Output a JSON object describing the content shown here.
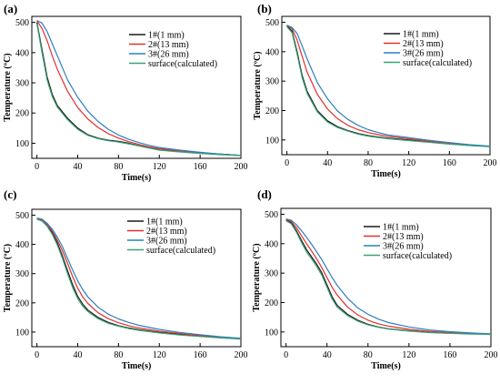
{
  "chart_data": [
    {
      "type": "line",
      "panel": "(a)",
      "xlabel": "Time(s)",
      "ylabel": "Temperature (ºC)",
      "xlim": [
        -5,
        200
      ],
      "ylim": [
        50,
        520
      ],
      "xticks": [
        0,
        40,
        80,
        120,
        160,
        200
      ],
      "yticks": [
        100,
        200,
        300,
        400,
        500
      ],
      "legend_position": "top-right",
      "series": [
        {
          "name": "1#(1 mm)",
          "color": "#1a1a1a",
          "x": [
            0,
            5,
            10,
            15,
            20,
            30,
            40,
            50,
            60,
            70,
            80,
            90,
            100,
            110,
            120,
            140,
            160,
            180,
            200
          ],
          "y": [
            500,
            410,
            320,
            262,
            225,
            183,
            150,
            128,
            117,
            110,
            106,
            100,
            92,
            85,
            78,
            72,
            68,
            64,
            60
          ]
        },
        {
          "name": "2#(13 mm)",
          "color": "#e0302e",
          "x": [
            0,
            5,
            10,
            15,
            20,
            30,
            40,
            50,
            60,
            70,
            80,
            90,
            100,
            110,
            120,
            140,
            160,
            180,
            200
          ],
          "y": [
            505,
            480,
            440,
            390,
            345,
            272,
            218,
            180,
            152,
            132,
            117,
            105,
            96,
            88,
            82,
            74,
            68,
            63,
            59
          ]
        },
        {
          "name": "3#(26 mm)",
          "color": "#2d7fc0",
          "x": [
            0,
            5,
            10,
            15,
            20,
            30,
            40,
            50,
            60,
            70,
            80,
            90,
            100,
            110,
            120,
            140,
            160,
            180,
            200
          ],
          "y": [
            506,
            498,
            470,
            430,
            390,
            310,
            252,
            206,
            172,
            146,
            127,
            113,
            102,
            93,
            86,
            77,
            70,
            64,
            60
          ]
        },
        {
          "name": "surface(calculated)",
          "color": "#3aa374",
          "x": [
            0,
            5,
            10,
            15,
            20,
            30,
            40,
            50,
            60,
            70,
            80,
            90,
            100,
            110,
            120,
            140,
            160,
            180,
            200
          ],
          "y": [
            495,
            400,
            310,
            255,
            220,
            178,
            146,
            126,
            115,
            108,
            104,
            98,
            91,
            84,
            77,
            71,
            66,
            62,
            59
          ]
        }
      ]
    },
    {
      "type": "line",
      "panel": "(b)",
      "xlabel": "Time(s)",
      "ylabel": "Temperature (ºC)",
      "xlim": [
        -5,
        200
      ],
      "ylim": [
        50,
        520
      ],
      "xticks": [
        0,
        40,
        80,
        120,
        160,
        200
      ],
      "yticks": [
        100,
        200,
        300,
        400,
        500
      ],
      "legend_position": "top-right",
      "series": [
        {
          "name": "1#(1 mm)",
          "color": "#1a1a1a",
          "x": [
            0,
            5,
            10,
            15,
            20,
            30,
            40,
            50,
            60,
            70,
            80,
            90,
            100,
            120,
            140,
            160,
            180,
            200
          ],
          "y": [
            488,
            470,
            400,
            320,
            265,
            200,
            165,
            145,
            132,
            122,
            115,
            110,
            106,
            100,
            93,
            87,
            82,
            78
          ]
        },
        {
          "name": "2#(13 mm)",
          "color": "#e0302e",
          "x": [
            0,
            5,
            10,
            15,
            20,
            30,
            40,
            50,
            60,
            70,
            80,
            90,
            100,
            120,
            140,
            160,
            180,
            200
          ],
          "y": [
            490,
            478,
            440,
            385,
            330,
            255,
            205,
            172,
            150,
            135,
            125,
            118,
            112,
            104,
            96,
            89,
            83,
            78
          ]
        },
        {
          "name": "3#(26 mm)",
          "color": "#2d7fc0",
          "x": [
            0,
            5,
            10,
            15,
            20,
            30,
            40,
            50,
            60,
            70,
            80,
            90,
            100,
            120,
            140,
            160,
            180,
            200
          ],
          "y": [
            490,
            482,
            462,
            420,
            375,
            295,
            240,
            198,
            170,
            150,
            135,
            125,
            117,
            108,
            99,
            91,
            84,
            79
          ]
        },
        {
          "name": "surface(calculated)",
          "color": "#3aa374",
          "x": [
            0,
            5,
            10,
            15,
            20,
            30,
            40,
            50,
            60,
            70,
            80,
            90,
            100,
            120,
            140,
            160,
            180,
            200
          ],
          "y": [
            485,
            465,
            392,
            312,
            258,
            195,
            161,
            142,
            130,
            120,
            113,
            108,
            104,
            98,
            92,
            86,
            81,
            77
          ]
        }
      ]
    },
    {
      "type": "line",
      "panel": "(c)",
      "xlabel": "Time(s)",
      "ylabel": "Temperature (ºC)",
      "xlim": [
        -5,
        200
      ],
      "ylim": [
        50,
        520
      ],
      "xticks": [
        0,
        40,
        80,
        120,
        160,
        200
      ],
      "yticks": [
        100,
        200,
        300,
        400,
        500
      ],
      "legend_position": "top-right",
      "series": [
        {
          "name": "1#(1 mm)",
          "color": "#1a1a1a",
          "x": [
            0,
            5,
            10,
            15,
            20,
            25,
            30,
            35,
            40,
            45,
            50,
            60,
            70,
            80,
            90,
            100,
            120,
            140,
            160,
            180,
            200
          ],
          "y": [
            488,
            482,
            465,
            440,
            405,
            360,
            310,
            262,
            222,
            195,
            175,
            150,
            133,
            122,
            114,
            108,
            99,
            92,
            86,
            81,
            77
          ]
        },
        {
          "name": "2#(13 mm)",
          "color": "#e0302e",
          "x": [
            0,
            5,
            10,
            15,
            20,
            25,
            30,
            35,
            40,
            45,
            50,
            60,
            70,
            80,
            90,
            100,
            120,
            140,
            160,
            180,
            200
          ],
          "y": [
            488,
            483,
            468,
            446,
            415,
            378,
            335,
            290,
            250,
            220,
            198,
            166,
            146,
            132,
            122,
            114,
            103,
            95,
            88,
            82,
            78
          ]
        },
        {
          "name": "3#(26 mm)",
          "color": "#2d7fc0",
          "x": [
            0,
            5,
            10,
            15,
            20,
            25,
            30,
            35,
            40,
            45,
            50,
            60,
            70,
            80,
            90,
            100,
            120,
            140,
            160,
            180,
            200
          ],
          "y": [
            490,
            486,
            472,
            452,
            425,
            392,
            352,
            312,
            275,
            245,
            220,
            185,
            161,
            145,
            133,
            123,
            109,
            99,
            91,
            84,
            79
          ]
        },
        {
          "name": "surface(calculated)",
          "color": "#3aa374",
          "x": [
            0,
            5,
            10,
            15,
            20,
            25,
            30,
            35,
            40,
            45,
            50,
            60,
            70,
            80,
            90,
            100,
            120,
            140,
            160,
            180,
            200
          ],
          "y": [
            486,
            480,
            462,
            435,
            398,
            352,
            300,
            252,
            214,
            188,
            170,
            146,
            130,
            120,
            112,
            106,
            97,
            90,
            85,
            80,
            76
          ]
        }
      ]
    },
    {
      "type": "line",
      "panel": "(d)",
      "xlabel": "Time(s)",
      "ylabel": "Temperature (ºC)",
      "xlim": [
        -5,
        200
      ],
      "ylim": [
        50,
        520
      ],
      "xticks": [
        0,
        40,
        80,
        120,
        160,
        200
      ],
      "yticks": [
        100,
        200,
        300,
        400,
        500
      ],
      "legend_position": "top-right",
      "series": [
        {
          "name": "1#(1 mm)",
          "color": "#1a1a1a",
          "x": [
            0,
            5,
            10,
            15,
            20,
            25,
            30,
            35,
            40,
            45,
            50,
            60,
            70,
            80,
            90,
            100,
            120,
            140,
            160,
            180,
            200
          ],
          "y": [
            480,
            472,
            445,
            412,
            380,
            355,
            330,
            300,
            260,
            220,
            190,
            160,
            140,
            126,
            117,
            111,
            104,
            99,
            96,
            94,
            93
          ]
        },
        {
          "name": "2#(13 mm)",
          "color": "#e0302e",
          "x": [
            0,
            5,
            10,
            15,
            20,
            25,
            30,
            35,
            40,
            45,
            50,
            60,
            70,
            80,
            90,
            100,
            120,
            140,
            160,
            180,
            200
          ],
          "y": [
            482,
            476,
            455,
            428,
            400,
            375,
            348,
            318,
            285,
            252,
            225,
            185,
            158,
            140,
            128,
            120,
            109,
            102,
            98,
            95,
            93
          ]
        },
        {
          "name": "3#(26 mm)",
          "color": "#2d7fc0",
          "x": [
            0,
            5,
            10,
            15,
            20,
            25,
            30,
            35,
            40,
            45,
            50,
            60,
            70,
            80,
            90,
            100,
            120,
            140,
            160,
            180,
            200
          ],
          "y": [
            484,
            480,
            465,
            445,
            422,
            398,
            372,
            345,
            315,
            285,
            258,
            215,
            182,
            160,
            144,
            132,
            117,
            107,
            101,
            97,
            94
          ]
        },
        {
          "name": "surface(calculated)",
          "color": "#3aa374",
          "x": [
            0,
            5,
            10,
            15,
            20,
            25,
            30,
            35,
            40,
            45,
            50,
            60,
            70,
            80,
            90,
            100,
            120,
            140,
            160,
            180,
            200
          ],
          "y": [
            478,
            468,
            440,
            405,
            372,
            348,
            322,
            292,
            252,
            212,
            184,
            156,
            137,
            124,
            116,
            110,
            103,
            98,
            95,
            93,
            92
          ]
        }
      ]
    }
  ]
}
